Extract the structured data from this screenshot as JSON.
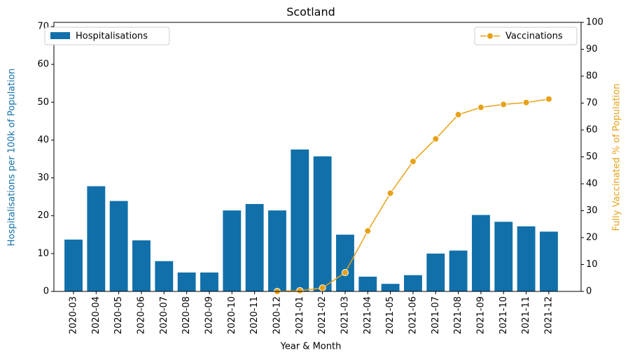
{
  "chart_data": {
    "type": "bar",
    "title": "Scotland",
    "xlabel": "Year & Month",
    "ylabel": "Hospitalisations per 100k of Population",
    "y2label": "Fully Vaccinated % of Population",
    "categories": [
      "2020-03",
      "2020-04",
      "2020-05",
      "2020-06",
      "2020-07",
      "2020-08",
      "2020-09",
      "2020-10",
      "2020-11",
      "2020-12",
      "2021-01",
      "2021-02",
      "2021-03",
      "2021-04",
      "2021-05",
      "2021-06",
      "2021-07",
      "2021-08",
      "2021-09",
      "2021-10",
      "2021-11",
      "2021-12"
    ],
    "series": [
      {
        "name": "Hospitalisations",
        "type": "bar",
        "color": "#1170aa",
        "legend": "upper left",
        "values": [
          13.7,
          27.8,
          23.9,
          13.5,
          8,
          5,
          5,
          21.4,
          23.1,
          21.4,
          37.5,
          35.7,
          15,
          3.9,
          2,
          4.3,
          10,
          10.8,
          20.2,
          18.4,
          17.2,
          15.8
        ]
      },
      {
        "name": "Vaccinations",
        "type": "line",
        "axis": "y2",
        "color": "#e6a117",
        "legend": "upper right",
        "values": [
          null,
          null,
          null,
          null,
          null,
          null,
          null,
          null,
          null,
          0,
          0.3,
          1.3,
          7,
          22.5,
          36.5,
          48.3,
          56.7,
          65.7,
          68.4,
          69.5,
          70.2,
          71.5
        ]
      }
    ],
    "ylim": [
      0,
      71.1
    ],
    "yticks": [
      0,
      10,
      20,
      30,
      40,
      50,
      60,
      70
    ],
    "y2lim": [
      0,
      100
    ],
    "y2ticks": [
      0,
      10,
      20,
      30,
      40,
      50,
      60,
      70,
      80,
      90,
      100
    ]
  }
}
